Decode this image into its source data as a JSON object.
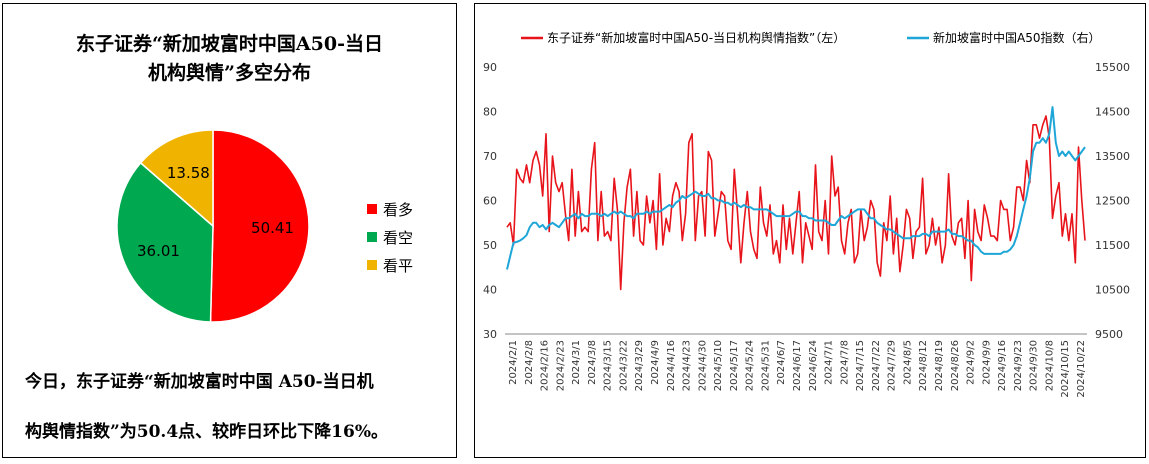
{
  "pie_chart": {
    "title_line1": "东子证券“新加坡富时中国A50-当日",
    "title_line2": "机构舆情”多空分布",
    "summary_line1": "今日，东子证券“新加坡富时中国 A50-当日机",
    "summary_line2": "构舆情指数”为50.4点、较昨日环比下降16%。"
  },
  "chart_data": [
    {
      "type": "pie",
      "slices": [
        {
          "label": "看多",
          "value": 50.41,
          "color": "#ff0000"
        },
        {
          "label": "看空",
          "value": 36.01,
          "color": "#00a850"
        },
        {
          "label": "看平",
          "value": 13.58,
          "color": "#f0b400"
        }
      ],
      "legend_position": "right"
    },
    {
      "type": "line",
      "series": [
        {
          "name": "东子证券“新加坡富时中国A50-当日机构舆情指数”（左）",
          "axis": "left",
          "color": "#e8141b",
          "values": [
            54,
            55,
            50,
            67,
            65,
            64,
            68,
            64,
            69,
            71,
            68,
            61,
            75,
            53,
            70,
            64,
            62,
            64,
            57,
            51,
            67,
            52,
            62,
            53,
            54,
            53,
            67,
            73,
            51,
            62,
            52,
            53,
            51,
            65,
            58,
            40,
            55,
            63,
            67,
            52,
            62,
            51,
            50,
            61,
            55,
            60,
            49,
            66,
            50,
            56,
            53,
            61,
            64,
            62,
            51,
            57,
            73,
            75,
            51,
            61,
            62,
            52,
            71,
            69,
            52,
            57,
            62,
            61,
            51,
            49,
            67,
            57,
            46,
            55,
            62,
            53,
            49,
            47,
            63,
            55,
            52,
            59,
            48,
            51,
            46,
            59,
            49,
            56,
            48,
            55,
            62,
            46,
            55,
            52,
            49,
            68,
            53,
            51,
            60,
            48,
            70,
            61,
            63,
            51,
            48,
            55,
            58,
            46,
            48,
            58,
            51,
            54,
            60,
            58,
            46,
            43,
            55,
            51,
            61,
            48,
            56,
            44,
            50,
            58,
            56,
            47,
            53,
            54,
            65,
            48,
            50,
            56,
            50,
            54,
            46,
            50,
            66,
            52,
            50,
            55,
            56,
            47,
            60,
            42,
            58,
            53,
            51,
            59,
            56,
            52,
            52,
            51,
            60,
            58,
            58,
            51,
            54,
            63,
            63,
            60,
            69,
            64,
            77,
            77,
            74,
            77,
            79,
            74,
            56,
            61,
            64,
            52,
            57,
            51,
            57,
            46,
            72,
            60,
            51
          ],
          "values_unit_note": ""
        },
        {
          "name": "新加坡富时中国A50指数（右）",
          "axis": "right",
          "color": "#1fa6d8",
          "values": [
            10950,
            11250,
            11550,
            11570,
            11600,
            11650,
            11720,
            11900,
            12000,
            12000,
            11900,
            11950,
            11850,
            11950,
            12000,
            11950,
            11900,
            12000,
            12100,
            12100,
            12150,
            12200,
            12100,
            12200,
            12150,
            12150,
            12200,
            12200,
            12200,
            12150,
            12200,
            12150,
            12200,
            12250,
            12200,
            12250,
            12200,
            12150,
            12150,
            12100,
            12200,
            12200,
            12200,
            12250,
            12200,
            12250,
            12250,
            12250,
            12300,
            12350,
            12400,
            12350,
            12450,
            12500,
            12600,
            12550,
            12600,
            12650,
            12700,
            12650,
            12600,
            12600,
            12650,
            12550,
            12550,
            12500,
            12500,
            12450,
            12450,
            12400,
            12450,
            12400,
            12350,
            12400,
            12350,
            12350,
            12300,
            12300,
            12300,
            12300,
            12300,
            12250,
            12200,
            12150,
            12150,
            12150,
            12150,
            12150,
            12200,
            12250,
            12250,
            12150,
            12150,
            12100,
            12100,
            12050,
            12050,
            12050,
            12050,
            12000,
            11950,
            11950,
            12050,
            12150,
            12100,
            12150,
            12200,
            12250,
            12300,
            12300,
            12300,
            12200,
            12100,
            12100,
            12000,
            11950,
            11900,
            11850,
            11850,
            11800,
            11750,
            11700,
            11650,
            11650,
            11650,
            11700,
            11700,
            11700,
            11750,
            11750,
            11700,
            11800,
            11800,
            11800,
            11800,
            11800,
            11850,
            11750,
            11750,
            11700,
            11700,
            11650,
            11600,
            11600,
            11500,
            11450,
            11350,
            11300,
            11300,
            11300,
            11300,
            11300,
            11300,
            11350,
            11350,
            11400,
            11500,
            11700,
            12000,
            12300,
            12600,
            13000,
            13600,
            13800,
            13800,
            13900,
            13800,
            14000,
            14600,
            13800,
            13500,
            13600,
            13500,
            13600,
            13500,
            13400,
            13500,
            13600,
            13700
          ]
        }
      ],
      "x_ticks": [
        "2024/2/1",
        "2024/2/8",
        "2024/2/16",
        "2024/2/23",
        "2024/3/1",
        "2024/3/8",
        "2024/3/15",
        "2024/3/22",
        "2024/3/29",
        "2024/4/9",
        "2024/4/16",
        "2024/4/23",
        "2024/4/30",
        "2024/5/10",
        "2024/5/17",
        "2024/5/24",
        "2024/5/31",
        "2024/6/7",
        "2024/6/17",
        "2024/6/24",
        "2024/7/1",
        "2024/7/8",
        "2024/7/15",
        "2024/7/22",
        "2024/7/29",
        "2024/8/5",
        "2024/8/12",
        "2024/8/19",
        "2024/8/26",
        "2024/9/2",
        "2024/9/9",
        "2024/9/16",
        "2024/9/23",
        "2024/9/30",
        "2024/10/8",
        "2024/10/15",
        "2024/10/22"
      ],
      "y_left": {
        "min": 30,
        "max": 90,
        "ticks": [
          30,
          40,
          50,
          60,
          70,
          80,
          90
        ]
      },
      "y_right": {
        "min": 9500,
        "max": 15500,
        "ticks": [
          9500,
          10500,
          11500,
          12500,
          13500,
          14500,
          15500
        ]
      },
      "grid": false,
      "legend_position": "top"
    }
  ]
}
